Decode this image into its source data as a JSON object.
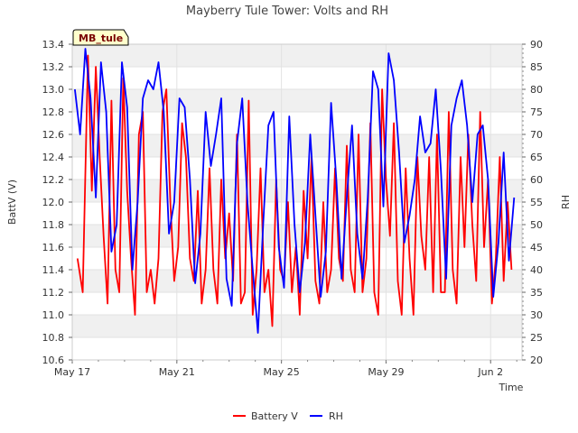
{
  "chart_data": {
    "type": "line",
    "title": "Mayberry Tule Tower: Volts and RH",
    "station_label": "MB_tule",
    "xlabel": "Time",
    "ylabel_left": "BattV (V)",
    "ylabel_right": "RH",
    "x_range_days": [
      0,
      17.2
    ],
    "x_ticks": [
      {
        "day": 0,
        "label": "May 17"
      },
      {
        "day": 4,
        "label": "May 21"
      },
      {
        "day": 8,
        "label": "May 25"
      },
      {
        "day": 12,
        "label": "May 29"
      },
      {
        "day": 16,
        "label": "Jun 2"
      }
    ],
    "ylim_left": [
      10.6,
      13.4
    ],
    "y_ticks_left": [
      "10.6",
      "10.8",
      "11.0",
      "11.2",
      "11.4",
      "11.6",
      "11.8",
      "12.0",
      "12.2",
      "12.4",
      "12.6",
      "12.8",
      "13.0",
      "13.2",
      "13.4"
    ],
    "ylim_right": [
      20,
      90
    ],
    "y_ticks_right": [
      "20",
      "25",
      "30",
      "35",
      "40",
      "45",
      "50",
      "55",
      "60",
      "65",
      "70",
      "75",
      "80",
      "85",
      "90"
    ],
    "series": [
      {
        "name": "Battery V",
        "axis": "left",
        "color": "#ff0000",
        "x": [
          0.2,
          0.4,
          0.6,
          0.75,
          0.9,
          1.05,
          1.2,
          1.35,
          1.5,
          1.65,
          1.8,
          1.95,
          2.1,
          2.25,
          2.4,
          2.55,
          2.7,
          2.85,
          3.0,
          3.15,
          3.3,
          3.45,
          3.6,
          3.75,
          3.9,
          4.05,
          4.2,
          4.35,
          4.5,
          4.65,
          4.8,
          4.95,
          5.1,
          5.25,
          5.4,
          5.55,
          5.7,
          5.85,
          6.0,
          6.15,
          6.3,
          6.45,
          6.6,
          6.75,
          6.9,
          7.05,
          7.2,
          7.35,
          7.5,
          7.65,
          7.8,
          7.95,
          8.1,
          8.25,
          8.4,
          8.55,
          8.7,
          8.85,
          9.0,
          9.15,
          9.3,
          9.45,
          9.6,
          9.75,
          9.9,
          10.05,
          10.2,
          10.35,
          10.5,
          10.65,
          10.8,
          10.95,
          11.1,
          11.25,
          11.4,
          11.55,
          11.7,
          11.85,
          12.0,
          12.15,
          12.3,
          12.45,
          12.6,
          12.75,
          12.9,
          13.05,
          13.2,
          13.35,
          13.5,
          13.65,
          13.8,
          13.95,
          14.1,
          14.25,
          14.4,
          14.55,
          14.7,
          14.85,
          15.0,
          15.15,
          15.3,
          15.45,
          15.6,
          15.75,
          15.9,
          16.05,
          16.2,
          16.35,
          16.5,
          16.65,
          16.8
        ],
        "values": [
          11.5,
          11.2,
          13.3,
          12.1,
          13.2,
          12.4,
          11.7,
          11.1,
          12.9,
          11.4,
          11.2,
          13.1,
          12.1,
          11.5,
          11.0,
          12.6,
          12.8,
          11.2,
          11.4,
          11.1,
          11.5,
          12.8,
          13.0,
          12.0,
          11.3,
          11.6,
          12.7,
          12.4,
          11.5,
          11.3,
          12.1,
          11.1,
          11.4,
          12.3,
          11.4,
          11.1,
          12.2,
          11.5,
          11.9,
          11.3,
          12.6,
          11.1,
          11.2,
          12.9,
          11.0,
          11.4,
          12.3,
          11.2,
          11.4,
          10.9,
          12.2,
          11.4,
          11.3,
          12.0,
          11.2,
          11.6,
          11.0,
          12.1,
          11.5,
          12.4,
          11.3,
          11.1,
          12.0,
          11.2,
          11.4,
          12.3,
          11.5,
          11.3,
          12.5,
          11.4,
          11.2,
          12.6,
          11.2,
          11.5,
          12.7,
          11.2,
          11.0,
          13.0,
          12.2,
          11.7,
          12.7,
          11.3,
          11.0,
          12.3,
          11.5,
          11.0,
          12.4,
          11.7,
          11.4,
          12.4,
          11.2,
          12.6,
          11.2,
          11.2,
          12.8,
          11.4,
          11.1,
          12.4,
          11.6,
          12.6,
          11.8,
          11.3,
          12.8,
          11.6,
          12.2,
          11.1,
          11.5,
          12.4,
          11.3,
          12.0,
          11.4
        ]
      },
      {
        "name": "RH",
        "axis": "right",
        "color": "#0000ff",
        "x": [
          0.1,
          0.3,
          0.5,
          0.7,
          0.9,
          1.1,
          1.3,
          1.5,
          1.7,
          1.9,
          2.1,
          2.3,
          2.5,
          2.7,
          2.9,
          3.1,
          3.3,
          3.5,
          3.7,
          3.9,
          4.1,
          4.3,
          4.5,
          4.7,
          4.9,
          5.1,
          5.3,
          5.5,
          5.7,
          5.9,
          6.1,
          6.3,
          6.5,
          6.7,
          6.9,
          7.1,
          7.3,
          7.5,
          7.7,
          7.9,
          8.1,
          8.3,
          8.5,
          8.7,
          8.9,
          9.1,
          9.3,
          9.5,
          9.7,
          9.9,
          10.1,
          10.3,
          10.5,
          10.7,
          10.9,
          11.1,
          11.3,
          11.5,
          11.7,
          11.9,
          12.1,
          12.3,
          12.5,
          12.7,
          12.9,
          13.1,
          13.3,
          13.5,
          13.7,
          13.9,
          14.1,
          14.3,
          14.5,
          14.7,
          14.9,
          15.1,
          15.3,
          15.5,
          15.7,
          15.9,
          16.1,
          16.3,
          16.5,
          16.7,
          16.9
        ],
        "values": [
          80,
          70,
          89,
          78,
          56,
          86,
          75,
          44,
          50,
          86,
          76,
          40,
          55,
          78,
          82,
          80,
          86,
          75,
          48,
          55,
          78,
          76,
          60,
          37,
          48,
          75,
          63,
          70,
          78,
          38,
          32,
          68,
          78,
          55,
          40,
          26,
          50,
          72,
          75,
          45,
          36,
          74,
          50,
          35,
          46,
          70,
          52,
          34,
          44,
          77,
          60,
          38,
          56,
          72,
          48,
          38,
          56,
          84,
          80,
          54,
          88,
          82,
          66,
          46,
          52,
          60,
          74,
          66,
          68,
          80,
          62,
          38,
          72,
          78,
          82,
          72,
          55,
          70,
          72,
          60,
          34,
          46,
          66,
          42,
          56
        ]
      }
    ],
    "legend_position": "bottom-center",
    "background_bands": "alternating-gray"
  }
}
